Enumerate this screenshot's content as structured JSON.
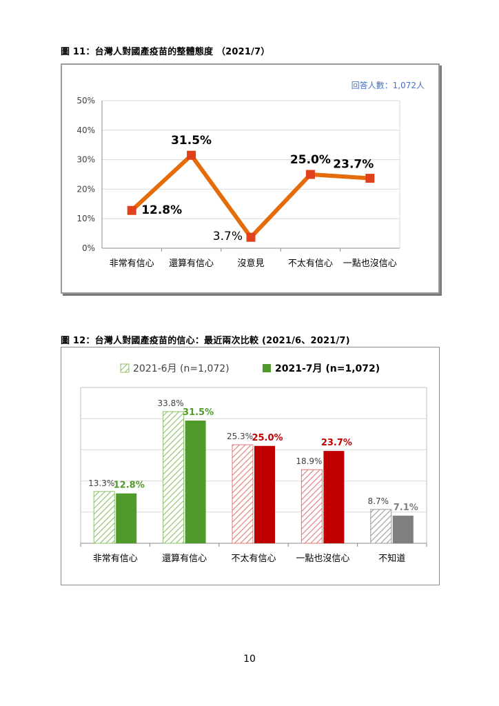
{
  "page": {
    "number": "10"
  },
  "figures": [
    {
      "caption": "圖 11：台灣人對國產疫苗的整體態度 （2021/7）",
      "note": "回答人數：1,072人"
    },
    {
      "caption": "圖 12：台灣人對國產疫苗的信心：最近兩次比較 (2021/6、2021/7)"
    }
  ],
  "chart_data": [
    {
      "type": "line",
      "categories": [
        "非常有信心",
        "還算有信心",
        "沒意見",
        "不太有信心",
        "一點也沒信心"
      ],
      "values": [
        12.8,
        31.5,
        3.7,
        25.0,
        23.7
      ],
      "value_labels": [
        "12.8%",
        "31.5%",
        "3.7%",
        "25.0%",
        "23.7%"
      ],
      "yticks": [
        "0%",
        "10%",
        "20%",
        "30%",
        "40%",
        "50%"
      ],
      "ylim": [
        0,
        50
      ],
      "grid": true,
      "colors": {
        "line": "#E46C0A",
        "marker": "#E0401A",
        "frame": "#9a9a9a"
      }
    },
    {
      "type": "bar",
      "categories": [
        "非常有信心",
        "還算有信心",
        "不太有信心",
        "一點也沒信心",
        "不知道"
      ],
      "series": [
        {
          "name": "2021-6月 (n=1,072)",
          "values": [
            13.3,
            33.8,
            25.3,
            18.9,
            8.7
          ],
          "labels": [
            "13.3%",
            "33.8%",
            "25.3%",
            "18.9%",
            "8.7%"
          ]
        },
        {
          "name": "2021-7月 (n=1,072)",
          "values": [
            12.8,
            31.5,
            25.0,
            23.7,
            7.1
          ],
          "labels": [
            "12.8%",
            "31.5%",
            "25.0%",
            "23.7%",
            "7.1%"
          ]
        }
      ],
      "bar_colors": [
        "#4F9A2A",
        "#4F9A2A",
        "#C00000",
        "#C00000",
        "#7F7F7F"
      ],
      "label_colors": [
        "#4F9A2A",
        "#4F9A2A",
        "#C00000",
        "#C00000",
        "#7F7F7F"
      ],
      "ylim": [
        0,
        40
      ],
      "grid": true,
      "legend_position": "top"
    }
  ]
}
